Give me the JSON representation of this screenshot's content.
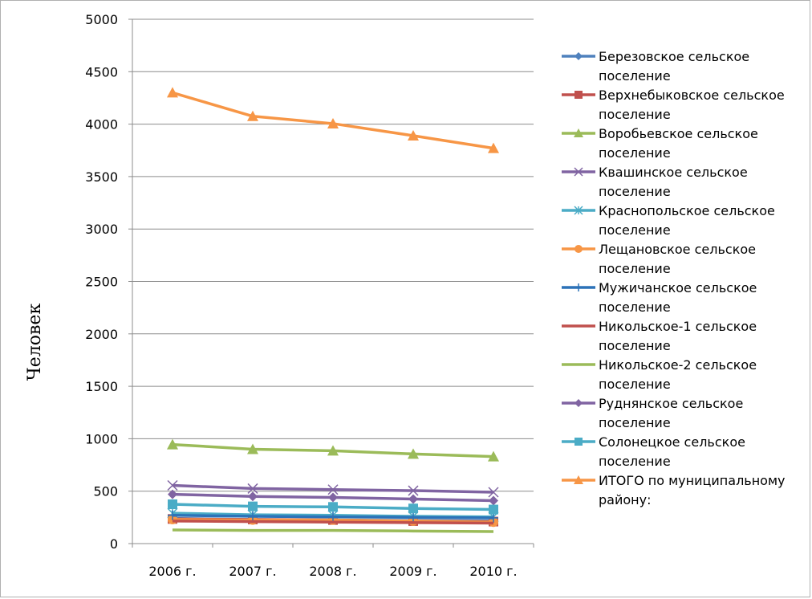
{
  "chart_data": {
    "type": "line",
    "title": "",
    "xlabel": "",
    "ylabel": "Человек",
    "categories": [
      "2006 г.",
      "2007 г.",
      "2008 г.",
      "2009 г.",
      "2010 г."
    ],
    "ylim": [
      0,
      5000
    ],
    "yticks": [
      0,
      500,
      1000,
      1500,
      2000,
      2500,
      3000,
      3500,
      4000,
      4500,
      5000
    ],
    "grid": "horizontal",
    "legend": "right",
    "series": [
      {
        "name": "Березовское сельское поселение",
        "color": "#4f81bd",
        "marker": "diamond",
        "values": [
          240,
          230,
          225,
          220,
          215
        ]
      },
      {
        "name": "Верхнебыковское сельское поселение",
        "color": "#c0504d",
        "marker": "square",
        "values": [
          235,
          230,
          225,
          215,
          210
        ]
      },
      {
        "name": "Воробьевское сельское поселение",
        "color": "#9bbb59",
        "marker": "triangle",
        "values": [
          945,
          900,
          885,
          855,
          830
        ]
      },
      {
        "name": "Квашинское сельское поселение",
        "color": "#8064a2",
        "marker": "x",
        "values": [
          555,
          525,
          515,
          505,
          490
        ]
      },
      {
        "name": "Краснопольское сельское поселение",
        "color": "#4bacc6",
        "marker": "star",
        "values": [
          290,
          275,
          270,
          260,
          255
        ]
      },
      {
        "name": "Лещановское сельское поселение",
        "color": "#f79646",
        "marker": "circle",
        "values": [
          230,
          225,
          225,
          215,
          205
        ]
      },
      {
        "name": "Мужичанское сельское поселение",
        "color": "#2c72b8",
        "marker": "plus",
        "values": [
          270,
          260,
          255,
          250,
          245
        ]
      },
      {
        "name": "Никольское-1 сельское поселение",
        "color": "#c0504d",
        "marker": "none",
        "values": [
          215,
          210,
          205,
          200,
          195
        ]
      },
      {
        "name": "Никольское-2 сельское поселение",
        "color": "#9bbb59",
        "marker": "none",
        "values": [
          130,
          125,
          125,
          120,
          115
        ]
      },
      {
        "name": "Руднянское сельское поселение",
        "color": "#8064a2",
        "marker": "diamond",
        "values": [
          470,
          450,
          440,
          425,
          410
        ]
      },
      {
        "name": "Солонецкое сельское поселение",
        "color": "#4bacc6",
        "marker": "square",
        "values": [
          375,
          355,
          350,
          335,
          325
        ]
      },
      {
        "name": "ИТОГО по муниципальному району:",
        "color": "#f79646",
        "marker": "triangle",
        "values": [
          4300,
          4075,
          4005,
          3890,
          3770
        ]
      }
    ]
  }
}
